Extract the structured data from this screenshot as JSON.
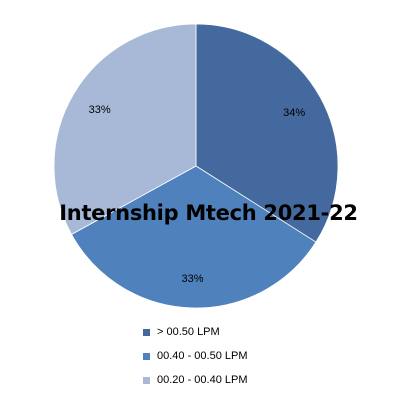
{
  "chart_data": {
    "type": "pie",
    "title": "Internship Mtech 2021-22",
    "categories": [
      "> 00.50 LPM",
      "00.40 - 00.50 LPM",
      "00.20 - 00.40 LPM"
    ],
    "values": [
      34,
      33,
      33
    ],
    "data_labels": [
      "34%",
      "33%",
      "33%"
    ],
    "colors": [
      "#43699E",
      "#4F81BD",
      "#A8B9D8"
    ],
    "legend_position": "bottom"
  }
}
